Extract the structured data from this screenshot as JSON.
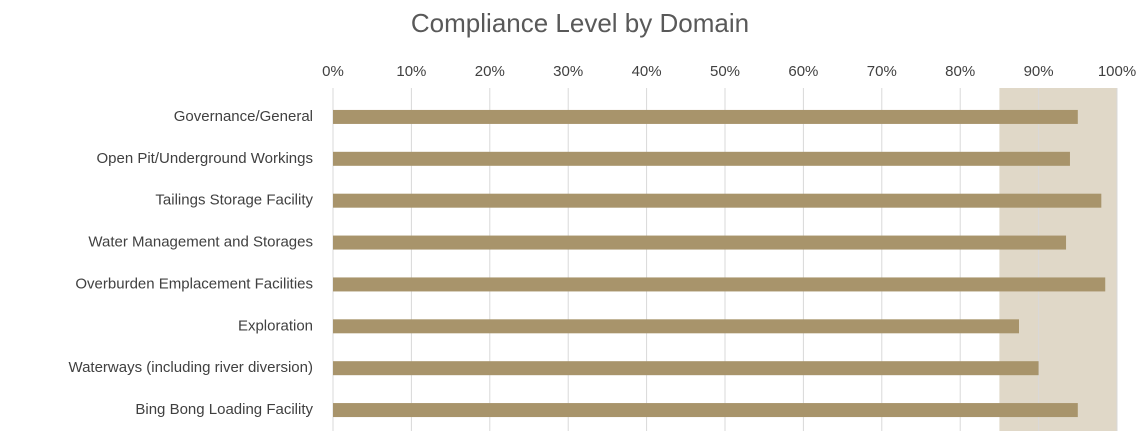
{
  "chart_data": {
    "type": "bar",
    "orientation": "horizontal",
    "title": "Compliance Level by Domain",
    "categories": [
      "Governance/General",
      "Open Pit/Underground Workings",
      "Tailings Storage Facility",
      "Water Management and Storages",
      "Overburden Emplacement Facilities",
      "Exploration",
      "Waterways (including river diversion)",
      "Bing Bong Loading Facility"
    ],
    "values": [
      95,
      94,
      98,
      93.5,
      98.5,
      87.5,
      90,
      95
    ],
    "color": "#a8946b",
    "highlight_range": [
      85,
      100
    ],
    "highlight_color": "#e0d8c8",
    "xlim": [
      0,
      100
    ],
    "xticks": [
      {
        "value": 0,
        "label": "0%"
      },
      {
        "value": 10,
        "label": "10%"
      },
      {
        "value": 20,
        "label": "20%"
      },
      {
        "value": 30,
        "label": "30%"
      },
      {
        "value": 40,
        "label": "40%"
      },
      {
        "value": 50,
        "label": "50%"
      },
      {
        "value": 60,
        "label": "60%"
      },
      {
        "value": 70,
        "label": "70%"
      },
      {
        "value": 80,
        "label": "80%"
      },
      {
        "value": 90,
        "label": "90%"
      },
      {
        "value": 100,
        "label": "100%"
      }
    ],
    "grid": true
  }
}
